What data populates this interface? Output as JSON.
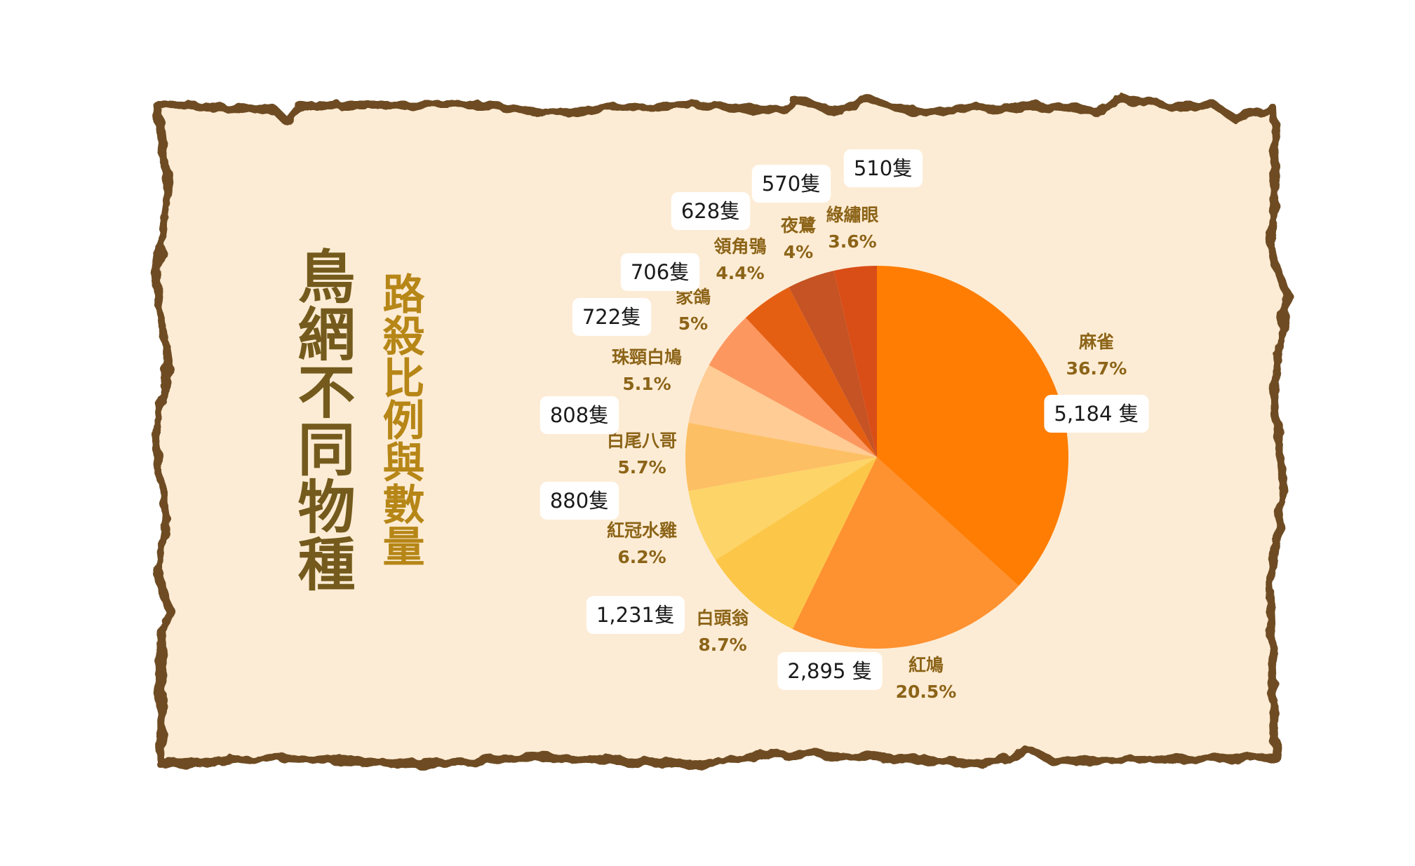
{
  "title": "鳥網不同物種",
  "subtitle": "路殺比例與數量",
  "chart_data": {
    "type": "pie",
    "slices": [
      {
        "name": "麻雀",
        "percent": "36.7%",
        "value": 36.7,
        "count": "5,184 隻",
        "color": "#fe7d02"
      },
      {
        "name": "紅鳩",
        "percent": "20.5%",
        "value": 20.5,
        "count": "2,895 隻",
        "color": "#fe9130"
      },
      {
        "name": "白頭翁",
        "percent": "8.7%",
        "value": 8.7,
        "count": "1,231隻",
        "color": "#fcc748"
      },
      {
        "name": "紅冠水雞",
        "percent": "6.2%",
        "value": 6.2,
        "count": "880隻",
        "color": "#fdd468"
      },
      {
        "name": "白尾八哥",
        "percent": "5.7%",
        "value": 5.7,
        "count": "808隻",
        "color": "#fdbf63"
      },
      {
        "name": "珠頸白鳩",
        "percent": "5.1%",
        "value": 5.1,
        "count": "722隻",
        "color": "#fecc94"
      },
      {
        "name": "家鴿",
        "percent": "5%",
        "value": 5.0,
        "count": "706隻",
        "color": "#fd9760"
      },
      {
        "name": "領角鴞",
        "percent": "4.4%",
        "value": 4.4,
        "count": "628隻",
        "color": "#e55f12"
      },
      {
        "name": "夜鷺",
        "percent": "4%",
        "value": 4.0,
        "count": "570隻",
        "color": "#c55323"
      },
      {
        "name": "綠繡眼",
        "percent": "3.6%",
        "value": 3.6,
        "count": "510隻",
        "color": "#d94d17"
      }
    ]
  }
}
